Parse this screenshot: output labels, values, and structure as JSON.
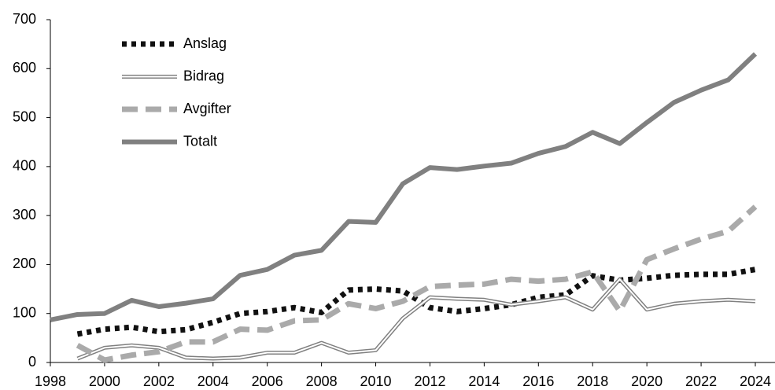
{
  "chart_data": {
    "type": "line",
    "x": [
      1998,
      1999,
      2000,
      2001,
      2002,
      2003,
      2004,
      2005,
      2006,
      2007,
      2008,
      2009,
      2010,
      2011,
      2012,
      2013,
      2014,
      2015,
      2016,
      2017,
      2018,
      2019,
      2020,
      2021,
      2022,
      2023,
      2024
    ],
    "series": [
      {
        "name": "Anslag",
        "color": "#111111",
        "values": [
          null,
          58,
          68,
          72,
          63,
          67,
          82,
          100,
          104,
          112,
          102,
          148,
          150,
          146,
          112,
          104,
          110,
          118,
          133,
          138,
          177,
          168,
          172,
          178,
          180,
          180,
          190
        ]
      },
      {
        "name": "Bidrag",
        "color": "#808080",
        "values": [
          null,
          8,
          30,
          35,
          30,
          10,
          8,
          10,
          20,
          20,
          40,
          20,
          25,
          90,
          133,
          130,
          128,
          118,
          125,
          133,
          108,
          170,
          108,
          120,
          125,
          128,
          125
        ]
      },
      {
        "name": "Avgifter",
        "color": "#aaaaaa",
        "values": [
          null,
          35,
          5,
          15,
          22,
          42,
          42,
          68,
          66,
          85,
          87,
          120,
          110,
          125,
          155,
          158,
          160,
          170,
          166,
          170,
          185,
          105,
          210,
          232,
          252,
          268,
          318
        ]
      },
      {
        "name": "Totalt",
        "color": "#808080",
        "values": [
          87,
          98,
          100,
          127,
          114,
          121,
          130,
          178,
          190,
          219,
          229,
          288,
          286,
          365,
          398,
          394,
          401,
          407,
          427,
          441,
          470,
          447,
          490,
          531,
          556,
          577,
          630
        ]
      }
    ],
    "xlim": [
      1998,
      2024
    ],
    "xticks": [
      1998,
      2000,
      2002,
      2004,
      2006,
      2008,
      2010,
      2012,
      2014,
      2016,
      2018,
      2020,
      2022,
      2024
    ],
    "ylim": [
      0,
      700
    ],
    "yticks": [
      0,
      100,
      200,
      300,
      400,
      500,
      600,
      700
    ],
    "legend": "top-left"
  }
}
